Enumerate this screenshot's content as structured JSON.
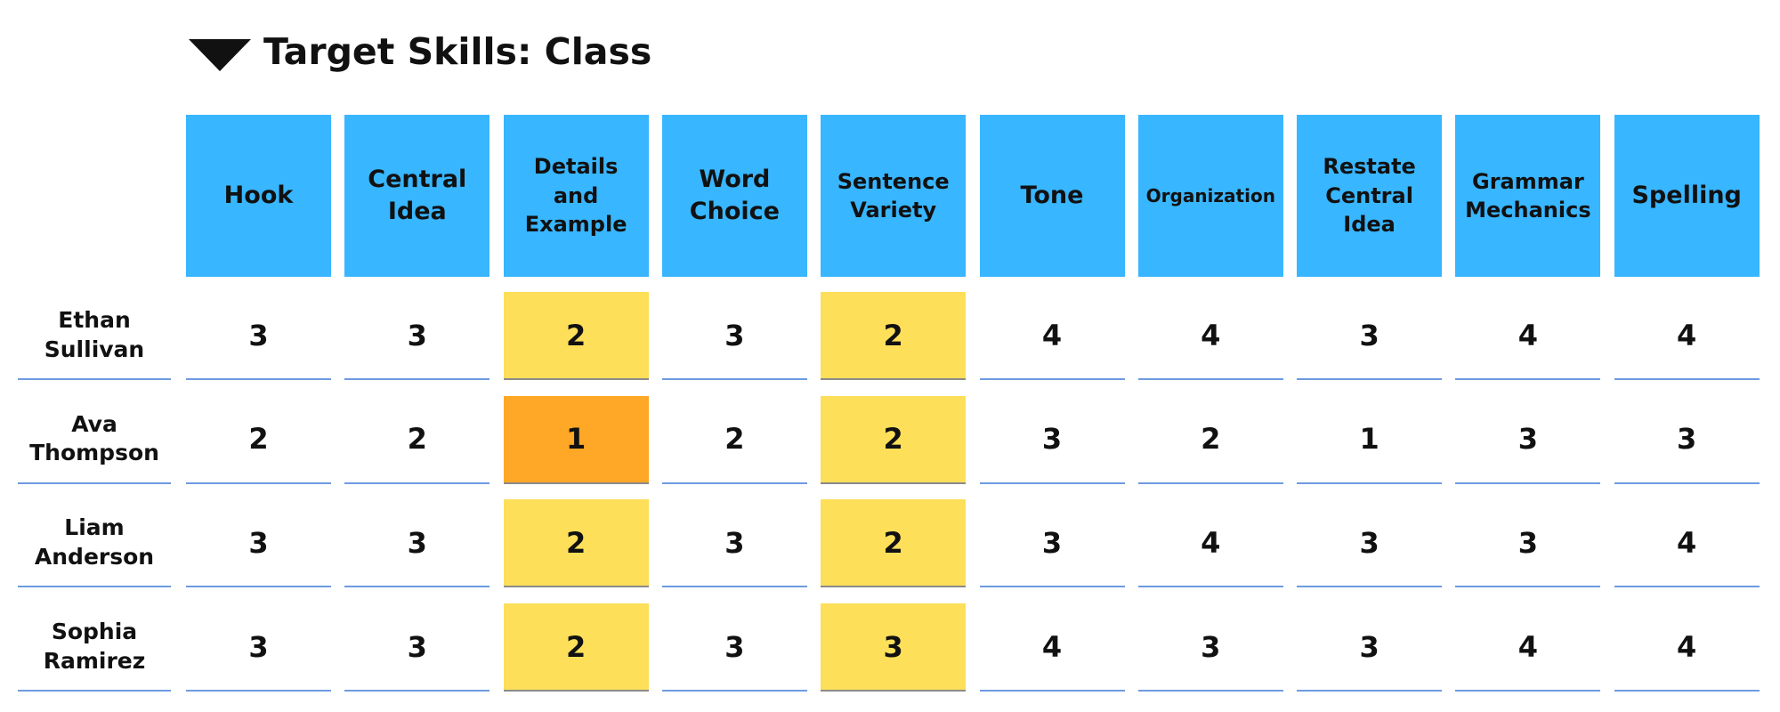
{
  "title": "Target Skills: Class",
  "table": {
    "columns": [
      "Hook",
      "Central Idea",
      "Details and Example",
      "Word Choice",
      "Sentence Variety",
      "Tone",
      "Organization",
      "Restate Central Idea",
      "Grammar Mechanics",
      "Spelling"
    ],
    "header_color": "#38b6ff",
    "rows": [
      {
        "name": "Ethan Sullivan",
        "values": [
          3,
          3,
          2,
          3,
          2,
          4,
          4,
          3,
          4,
          4
        ],
        "colors": [
          null,
          null,
          "#fddf5a",
          null,
          "#fddf5a",
          null,
          null,
          null,
          null,
          null
        ]
      },
      {
        "name": "Ava Thompson",
        "values": [
          2,
          2,
          1,
          2,
          2,
          3,
          2,
          1,
          3,
          3
        ],
        "colors": [
          null,
          null,
          "#ffa726",
          null,
          "#fddf5a",
          null,
          null,
          null,
          null,
          null
        ]
      },
      {
        "name": "Liam Anderson",
        "values": [
          3,
          3,
          2,
          3,
          2,
          3,
          4,
          3,
          3,
          4
        ],
        "colors": [
          null,
          null,
          "#fddf5a",
          null,
          "#fddf5a",
          null,
          null,
          null,
          null,
          null
        ]
      },
      {
        "name": "Sophia Ramirez",
        "values": [
          3,
          3,
          2,
          3,
          3,
          4,
          3,
          3,
          4,
          4
        ],
        "colors": [
          null,
          null,
          "#fddf5a",
          null,
          "#fddf5a",
          null,
          null,
          null,
          null,
          null
        ]
      }
    ]
  }
}
